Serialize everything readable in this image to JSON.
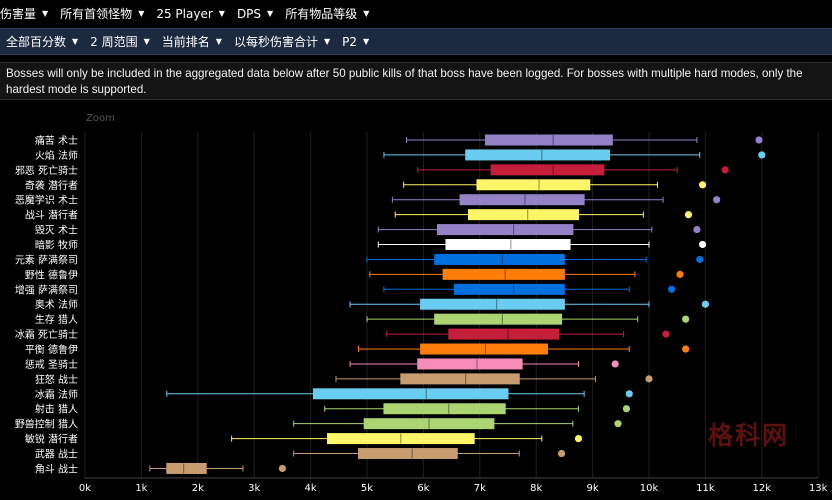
{
  "filters_top": [
    {
      "label": "伤害量"
    },
    {
      "label": "所有首领怪物"
    },
    {
      "label": "25 Player"
    },
    {
      "label": "DPS"
    },
    {
      "label": "所有物品等级"
    }
  ],
  "filters_second": [
    {
      "label": "全部百分数"
    },
    {
      "label": "2 周范围"
    },
    {
      "label": "当前排名"
    },
    {
      "label": "以每秒伤害合计"
    },
    {
      "label": "P2"
    }
  ],
  "notice": "Bosses will only be included in the aggregated data below after 50 public kills of that boss have been logged. For bosses with multiple hard modes, only the hardest mode is supported.",
  "zoom_label": "Zoom",
  "watermark": "格科网",
  "chart_data": {
    "type": "boxplot",
    "orientation": "horizontal",
    "xlim": [
      0,
      13000
    ],
    "xticks": [
      0,
      1000,
      2000,
      3000,
      4000,
      5000,
      6000,
      7000,
      8000,
      9000,
      10000,
      11000,
      12000,
      13000
    ],
    "xtick_labels": [
      "0k",
      "1k",
      "2k",
      "3k",
      "4k",
      "5k",
      "6k",
      "7k",
      "8k",
      "9k",
      "10k",
      "11k",
      "12k",
      "13k"
    ],
    "series": [
      {
        "label": "痛苦 术士",
        "color": "#9482c9",
        "whisker_low": 5700,
        "q1": 7100,
        "median": 8300,
        "q3": 9350,
        "whisker_high": 10850,
        "outlier": 11950
      },
      {
        "label": "火焰 法师",
        "color": "#69ccf0",
        "whisker_low": 5300,
        "q1": 6750,
        "median": 8100,
        "q3": 9300,
        "whisker_high": 10900,
        "outlier": 12000
      },
      {
        "label": "邪恶 死亡骑士",
        "color": "#c41e3a",
        "whisker_low": 5900,
        "q1": 7200,
        "median": 8300,
        "q3": 9200,
        "whisker_high": 10500,
        "outlier": 11350
      },
      {
        "label": "奇袭 潜行者",
        "color": "#fff569",
        "whisker_low": 5650,
        "q1": 6950,
        "median": 8050,
        "q3": 8950,
        "whisker_high": 10150,
        "outlier": 10950
      },
      {
        "label": "恶魔学识 术士",
        "color": "#9482c9",
        "whisker_low": 5450,
        "q1": 6650,
        "median": 7800,
        "q3": 8850,
        "whisker_high": 10250,
        "outlier": 11200
      },
      {
        "label": "战斗 潜行者",
        "color": "#fff569",
        "whisker_low": 5500,
        "q1": 6800,
        "median": 7850,
        "q3": 8750,
        "whisker_high": 9900,
        "outlier": 10700
      },
      {
        "label": "毁灭 术士",
        "color": "#9482c9",
        "whisker_low": 5200,
        "q1": 6250,
        "median": 7600,
        "q3": 8650,
        "whisker_high": 10050,
        "outlier": 10850
      },
      {
        "label": "暗影 牧师",
        "color": "#ffffff",
        "whisker_low": 5200,
        "q1": 6400,
        "median": 7550,
        "q3": 8600,
        "whisker_high": 10000,
        "outlier": 10950
      },
      {
        "label": "元素 萨满祭司",
        "color": "#0070de",
        "whisker_low": 5000,
        "q1": 6200,
        "median": 7400,
        "q3": 8500,
        "whisker_high": 9950,
        "outlier": 10900
      },
      {
        "label": "野性 德鲁伊",
        "color": "#ff7d0a",
        "whisker_low": 5050,
        "q1": 6350,
        "median": 7450,
        "q3": 8500,
        "whisker_high": 9750,
        "outlier": 10550
      },
      {
        "label": "增强 萨满祭司",
        "color": "#0070de",
        "whisker_low": 5300,
        "q1": 6550,
        "median": 7600,
        "q3": 8500,
        "whisker_high": 9650,
        "outlier": 10400
      },
      {
        "label": "奥术 法师",
        "color": "#69ccf0",
        "whisker_low": 4700,
        "q1": 5950,
        "median": 7300,
        "q3": 8500,
        "whisker_high": 10000,
        "outlier": 11000
      },
      {
        "label": "生存 猎人",
        "color": "#abd473",
        "whisker_low": 5000,
        "q1": 6200,
        "median": 7400,
        "q3": 8450,
        "whisker_high": 9800,
        "outlier": 10650
      },
      {
        "label": "冰霜 死亡骑士",
        "color": "#c41e3a",
        "whisker_low": 5350,
        "q1": 6450,
        "median": 7500,
        "q3": 8400,
        "whisker_high": 9550,
        "outlier": 10300
      },
      {
        "label": "平衡 德鲁伊",
        "color": "#ff7d0a",
        "whisker_low": 4850,
        "q1": 5950,
        "median": 7100,
        "q3": 8200,
        "whisker_high": 9650,
        "outlier": 10650
      },
      {
        "label": "惩戒 圣骑士",
        "color": "#f58cba",
        "whisker_low": 4700,
        "q1": 5900,
        "median": 6950,
        "q3": 7750,
        "whisker_high": 8750,
        "outlier": 9400
      },
      {
        "label": "狂怒 战士",
        "color": "#c79c6e",
        "whisker_low": 4450,
        "q1": 5600,
        "median": 6750,
        "q3": 7700,
        "whisker_high": 9050,
        "outlier": 10000
      },
      {
        "label": "冰霜 法师",
        "color": "#69ccf0",
        "whisker_low": 1450,
        "q1": 4050,
        "median": 6050,
        "q3": 7500,
        "whisker_high": 8850,
        "outlier": 9650
      },
      {
        "label": "射击 猎人",
        "color": "#abd473",
        "whisker_low": 4250,
        "q1": 5300,
        "median": 6450,
        "q3": 7450,
        "whisker_high": 8750,
        "outlier": 9600
      },
      {
        "label": "野兽控制 猎人",
        "color": "#abd473",
        "whisker_low": 3700,
        "q1": 4950,
        "median": 6100,
        "q3": 7250,
        "whisker_high": 8650,
        "outlier": 9450
      },
      {
        "label": "敏锐 潜行者",
        "color": "#fff569",
        "whisker_low": 2600,
        "q1": 4300,
        "median": 5600,
        "q3": 6900,
        "whisker_high": 8100,
        "outlier": 8750
      },
      {
        "label": "武器 战士",
        "color": "#c79c6e",
        "whisker_low": 3700,
        "q1": 4850,
        "median": 5800,
        "q3": 6600,
        "whisker_high": 7700,
        "outlier": 8450
      },
      {
        "label": "角斗 战士",
        "color": "#c79c6e",
        "whisker_low": 1150,
        "q1": 1450,
        "median": 1750,
        "q3": 2150,
        "whisker_high": 2800,
        "outlier": 3500
      }
    ]
  }
}
